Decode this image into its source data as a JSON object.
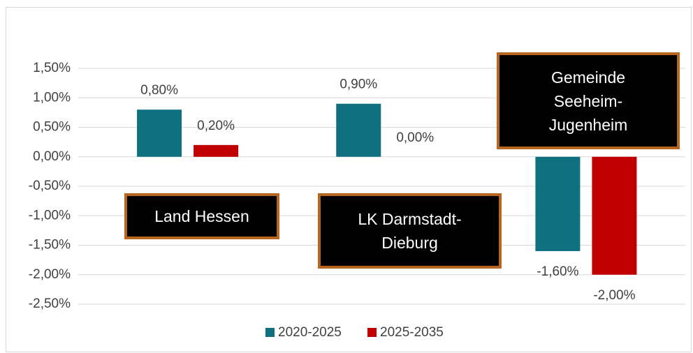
{
  "chart_data": {
    "type": "bar",
    "categories": [
      "Land Hessen",
      "LK Darmstadt-Dieburg",
      "Gemeinde Seeheim-Jugenheim"
    ],
    "series": [
      {
        "name": "2020-2025",
        "color": "#0f7180",
        "values": [
          0.8,
          0.9,
          -1.6
        ],
        "value_labels": [
          "0,80%",
          "0,90%",
          "-1,60%"
        ]
      },
      {
        "name": "2025-2035",
        "color": "#c00000",
        "values": [
          0.2,
          0.0,
          -2.0
        ],
        "value_labels": [
          "0,20%",
          "0,00%",
          "-2,00%"
        ]
      }
    ],
    "ylim": [
      -2.5,
      1.5
    ],
    "yticks": [
      {
        "value": -2.5,
        "label": "-2,50%"
      },
      {
        "value": -2.0,
        "label": "-2,00%"
      },
      {
        "value": -1.5,
        "label": "-1,50%"
      },
      {
        "value": -1.0,
        "label": "-1,00%"
      },
      {
        "value": -0.5,
        "label": "-0,50%"
      },
      {
        "value": 0.0,
        "label": "0,00%"
      },
      {
        "value": 0.5,
        "label": "0,50%"
      },
      {
        "value": 1.0,
        "label": "1,00%"
      },
      {
        "value": 1.5,
        "label": "1,50%"
      }
    ],
    "grid": true,
    "legend": "bottom"
  }
}
